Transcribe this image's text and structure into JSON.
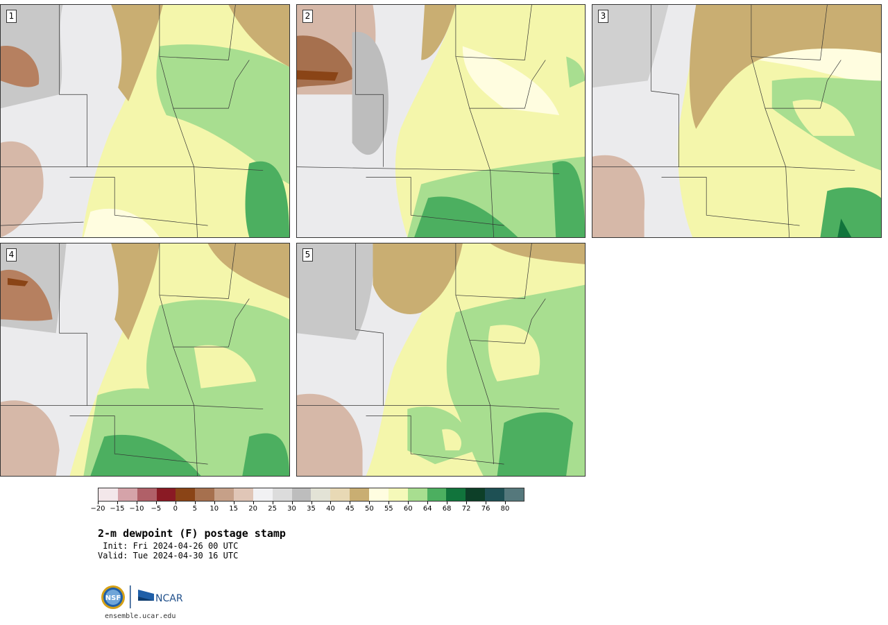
{
  "panels": [
    {
      "label": "1"
    },
    {
      "label": "2"
    },
    {
      "label": "3"
    },
    {
      "label": "4"
    },
    {
      "label": "5"
    }
  ],
  "legend": {
    "colors": [
      "#f3e7ea",
      "#d5a3a9",
      "#b06068",
      "#8a1a24",
      "#8a4416",
      "#a6704e",
      "#c6a088",
      "#e0c6b7",
      "#f1f1f3",
      "#dcdcdc",
      "#bdbdbd",
      "#e3e3d6",
      "#e8d9b5",
      "#c9ae72",
      "#fffde0",
      "#f5f9b9",
      "#a8de90",
      "#4caf60",
      "#11743c",
      "#0d3f28",
      "#1e5054",
      "#55787c"
    ],
    "ticks": [
      "−20",
      "−15",
      "−10",
      "−5",
      "0",
      "5",
      "10",
      "15",
      "20",
      "25",
      "30",
      "35",
      "40",
      "45",
      "50",
      "55",
      "60",
      "64",
      "68",
      "72",
      "76",
      "80"
    ]
  },
  "title": "2-m dewpoint (F) postage stamp",
  "init": " Init: Fri 2024-04-26 00 UTC",
  "valid": "Valid: Tue 2024-04-30 16 UTC",
  "logos": {
    "nsf": "NSF",
    "ncar": "NCAR"
  },
  "site": "ensemble.ucar.edu"
}
